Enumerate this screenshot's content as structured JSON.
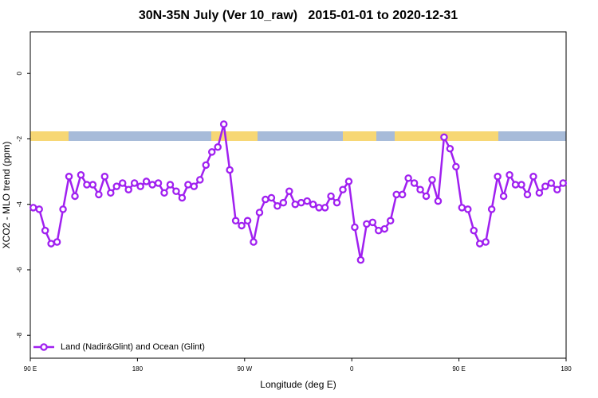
{
  "chart_data": {
    "type": "line",
    "title": "30N-35N July (Ver 10_raw)   2015-01-01 to 2020-12-31",
    "x_label": "Longitude (deg E)",
    "y_label": "XCO2 - MLO trend (ppm)",
    "xlim": [
      90,
      540
    ],
    "ylim": [
      -8.7,
      1.27
    ],
    "xticks": [
      {
        "value": 90,
        "label": "90 E"
      },
      {
        "value": 180,
        "label": "180"
      },
      {
        "value": 270,
        "label": "90 W"
      },
      {
        "value": 360,
        "label": "0"
      },
      {
        "value": 450,
        "label": "90 E"
      },
      {
        "value": 540,
        "label": "180"
      }
    ],
    "yticks": [
      0,
      -2,
      -4,
      -6,
      -8
    ],
    "legend": "bottom-left",
    "x": [
      92.5,
      97.5,
      102.5,
      107.5,
      112.5,
      117.5,
      122.5,
      127.5,
      132.5,
      137.5,
      142.5,
      147.5,
      152.5,
      157.5,
      162.5,
      167.5,
      172.5,
      177.5,
      182.5,
      187.5,
      192.5,
      197.5,
      202.5,
      207.5,
      212.5,
      217.5,
      222.5,
      227.5,
      232.5,
      237.5,
      242.5,
      247.5,
      252.5,
      257.5,
      262.5,
      267.5,
      272.5,
      277.5,
      282.5,
      287.5,
      292.5,
      297.5,
      302.5,
      307.5,
      312.5,
      317.5,
      322.5,
      327.5,
      332.5,
      337.5,
      342.5,
      347.5,
      352.5,
      357.5,
      362.5,
      367.5,
      372.5,
      377.5,
      382.5,
      387.5,
      392.5,
      397.5,
      402.5,
      407.5,
      412.5,
      417.5,
      422.5,
      427.5,
      432.5,
      437.5,
      442.5,
      447.5,
      452.5,
      457.5,
      462.5,
      467.5,
      472.5,
      477.5,
      482.5,
      487.5,
      492.5,
      497.5,
      502.5,
      507.5,
      512.5,
      517.5,
      522.5,
      527.5,
      532.5,
      537.5
    ],
    "series": [
      {
        "name": "Land (Nadir&Glint) and Ocean (Glint)",
        "color": "#a020f0",
        "values": [
          -4.1,
          -4.15,
          -4.8,
          -5.2,
          -5.15,
          -4.15,
          -3.15,
          -3.75,
          -3.1,
          -3.4,
          -3.4,
          -3.7,
          -3.15,
          -3.65,
          -3.45,
          -3.35,
          -3.55,
          -3.35,
          -3.45,
          -3.3,
          -3.4,
          -3.35,
          -3.65,
          -3.4,
          -3.6,
          -3.8,
          -3.4,
          -3.45,
          -3.25,
          -2.8,
          -2.4,
          -2.25,
          -1.55,
          -2.95,
          -4.5,
          -4.65,
          -4.5,
          -5.15,
          -4.25,
          -3.85,
          -3.8,
          -4.05,
          -3.95,
          -3.6,
          -4.0,
          -3.95,
          -3.9,
          -4.0,
          -4.1,
          -4.1,
          -3.75,
          -3.95,
          -3.55,
          -3.3,
          -4.7,
          -5.7,
          -4.6,
          -4.55,
          -4.8,
          -4.75,
          -4.5,
          -3.7,
          -3.7,
          -3.2,
          -3.35,
          -3.55,
          -3.75,
          -3.25,
          -3.9,
          -1.95,
          -2.3,
          -2.85,
          -4.1,
          -4.15,
          -4.8,
          -5.2,
          -5.15,
          -4.15,
          -3.15,
          -3.75,
          -3.1,
          -3.4,
          -3.4,
          -3.7,
          -3.15,
          -3.65,
          -3.45,
          -3.35,
          -3.55,
          -3.35
        ]
      }
    ]
  }
}
